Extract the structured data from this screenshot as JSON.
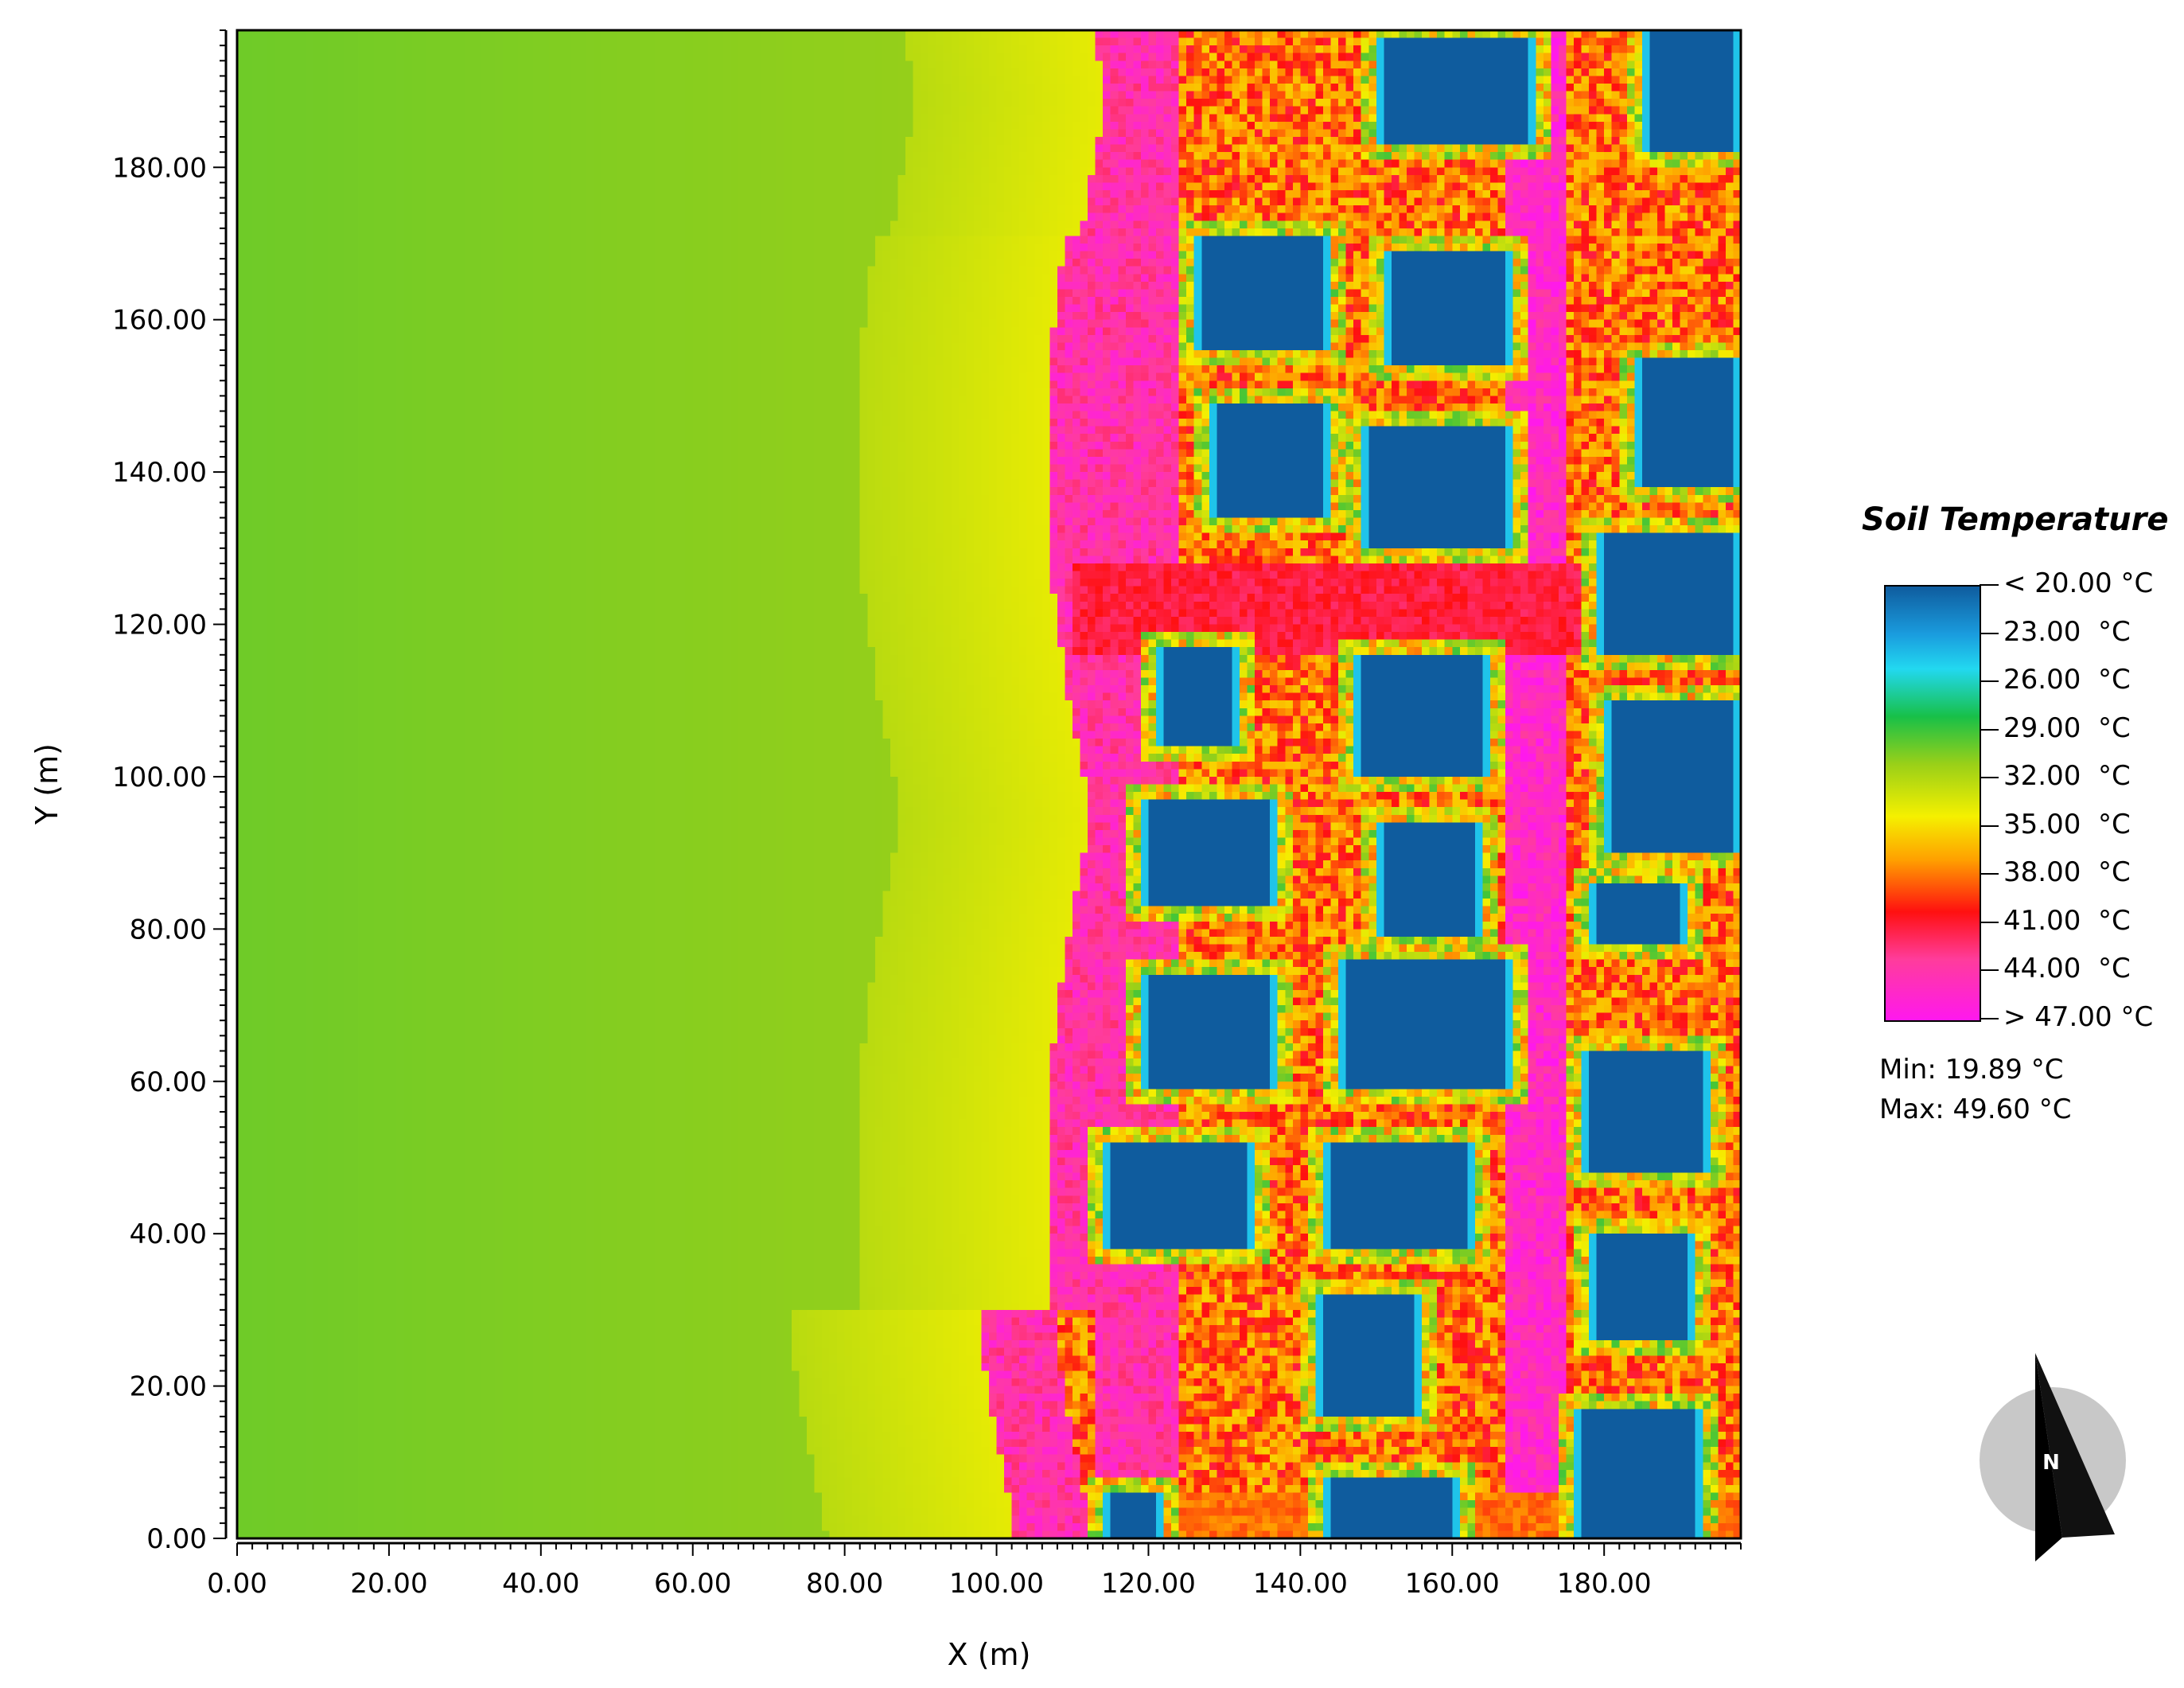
{
  "chart_data": {
    "type": "heatmap",
    "xlabel": "X (m)",
    "ylabel": "Y (m)",
    "xlim": [
      0,
      198
    ],
    "ylim": [
      0,
      198
    ],
    "x_ticks": [
      "0.00",
      "20.00",
      "40.00",
      "60.00",
      "80.00",
      "100.00",
      "120.00",
      "140.00",
      "160.00",
      "180.00"
    ],
    "y_ticks": [
      "0.00",
      "20.00",
      "40.00",
      "60.00",
      "80.00",
      "100.00",
      "120.00",
      "140.00",
      "160.00",
      "180.00"
    ],
    "colorbar": {
      "title": "Soil Temperature",
      "labels": [
        "< 20.00 °C",
        "23.00  °C",
        "26.00  °C",
        "29.00  °C",
        "32.00  °C",
        "35.00  °C",
        "38.00  °C",
        "41.00  °C",
        "44.00  °C",
        "> 47.00 °C"
      ],
      "values": [
        20,
        23,
        26,
        29,
        32,
        35,
        38,
        41,
        44,
        47
      ],
      "colors": [
        "#0f5c9e",
        "#1a9cde",
        "#22d8f0",
        "#18c048",
        "#9ad018",
        "#f5f000",
        "#ffa000",
        "#ff1010",
        "#ff3c9c",
        "#ff18ee"
      ]
    },
    "min_label": "Min: 19.89 °C",
    "max_label": "Max: 49.60 °C",
    "background_c": 31.0,
    "road_cols": [
      {
        "x0": 113,
        "x1": 124,
        "y0": 0,
        "y1": 198,
        "t": 43
      },
      {
        "x0": 167,
        "x1": 175,
        "y0": 0,
        "y1": 198,
        "t": 44
      }
    ],
    "road_rows": [
      {
        "x0": 110,
        "x1": 198,
        "y0": 116,
        "y1": 128,
        "t": 41
      },
      {
        "x0": 112,
        "x1": 198,
        "y0": 0,
        "y1": 6,
        "t": 38
      }
    ],
    "urban_zones": [
      {
        "x0": 98,
        "x1": 198,
        "y0": 0,
        "y1": 5,
        "t": 40
      },
      {
        "x0": 112,
        "x1": 198,
        "y0": 0,
        "y1": 198,
        "t": 37
      }
    ],
    "buildings": [
      [
        150,
        171,
        183,
        197
      ],
      [
        185,
        198,
        182,
        198
      ],
      [
        126,
        144,
        156,
        171
      ],
      [
        151,
        168,
        154,
        169
      ],
      [
        128,
        144,
        134,
        149
      ],
      [
        148,
        168,
        130,
        146
      ],
      [
        184,
        198,
        138,
        155
      ],
      [
        179,
        198,
        116,
        132
      ],
      [
        121,
        132,
        104,
        117
      ],
      [
        147,
        165,
        100,
        116
      ],
      [
        180,
        198,
        90,
        110
      ],
      [
        119,
        137,
        83,
        97
      ],
      [
        150,
        164,
        79,
        94
      ],
      [
        178,
        191,
        78,
        86
      ],
      [
        119,
        137,
        59,
        74
      ],
      [
        145,
        168,
        59,
        76
      ],
      [
        177,
        194,
        48,
        64
      ],
      [
        114,
        134,
        38,
        52
      ],
      [
        143,
        163,
        38,
        52
      ],
      [
        178,
        192,
        26,
        40
      ],
      [
        142,
        156,
        16,
        32
      ],
      [
        176,
        193,
        0,
        17
      ],
      [
        143,
        161,
        0,
        8
      ],
      [
        114,
        122,
        0,
        6
      ]
    ]
  }
}
